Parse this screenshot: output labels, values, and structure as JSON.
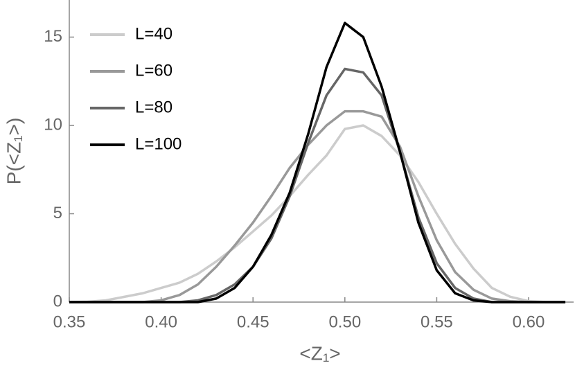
{
  "chart_data": {
    "type": "line",
    "xlabel": "<Z₁>",
    "ylabel": "P(<Z₁>)",
    "x": [
      0.35,
      0.36,
      0.37,
      0.38,
      0.39,
      0.4,
      0.41,
      0.42,
      0.43,
      0.44,
      0.45,
      0.46,
      0.47,
      0.48,
      0.49,
      0.5,
      0.51,
      0.52,
      0.53,
      0.54,
      0.55,
      0.56,
      0.57,
      0.58,
      0.59,
      0.6,
      0.61,
      0.62
    ],
    "series": [
      {
        "name": "L=40",
        "color": "#cccccc",
        "values": [
          0,
          0.02,
          0.1,
          0.3,
          0.5,
          0.8,
          1.1,
          1.6,
          2.3,
          3.1,
          4.0,
          4.9,
          6.0,
          7.2,
          8.3,
          9.8,
          10.0,
          9.4,
          8.3,
          6.8,
          5.0,
          3.3,
          1.9,
          0.8,
          0.3,
          0.05,
          0,
          0
        ]
      },
      {
        "name": "L=60",
        "color": "#999999",
        "values": [
          0,
          0,
          0,
          0,
          0,
          0.1,
          0.4,
          1.0,
          2.0,
          3.2,
          4.5,
          6.0,
          7.6,
          8.9,
          10.0,
          10.8,
          10.8,
          10.5,
          8.8,
          6.0,
          3.5,
          1.7,
          0.7,
          0.2,
          0.05,
          0,
          0,
          0
        ]
      },
      {
        "name": "L=80",
        "color": "#666666",
        "values": [
          0,
          0,
          0,
          0,
          0,
          0,
          0,
          0.1,
          0.4,
          1.0,
          2.0,
          3.6,
          6.0,
          9.0,
          11.7,
          13.2,
          13.0,
          11.7,
          8.5,
          4.8,
          2.2,
          0.8,
          0.2,
          0,
          0,
          0,
          0,
          0
        ]
      },
      {
        "name": "L=100",
        "color": "#000000",
        "values": [
          0,
          0,
          0,
          0,
          0,
          0,
          0,
          0,
          0.2,
          0.8,
          2.0,
          3.8,
          6.2,
          9.5,
          13.3,
          15.8,
          15.0,
          12.2,
          8.5,
          4.5,
          1.8,
          0.5,
          0.1,
          0,
          0,
          0,
          0,
          0
        ]
      }
    ],
    "xlim": [
      0.35,
      0.6245
    ],
    "ylim": [
      0,
      17.1
    ],
    "xticks": [
      {
        "value": 0.35,
        "label": "0.35"
      },
      {
        "value": 0.4,
        "label": "0.40"
      },
      {
        "value": 0.45,
        "label": "0.45"
      },
      {
        "value": 0.5,
        "label": "0.50"
      },
      {
        "value": 0.55,
        "label": "0.55"
      },
      {
        "value": 0.6,
        "label": "0.60"
      }
    ],
    "yticks": [
      0,
      5,
      10,
      15
    ],
    "legend": "top-left"
  }
}
